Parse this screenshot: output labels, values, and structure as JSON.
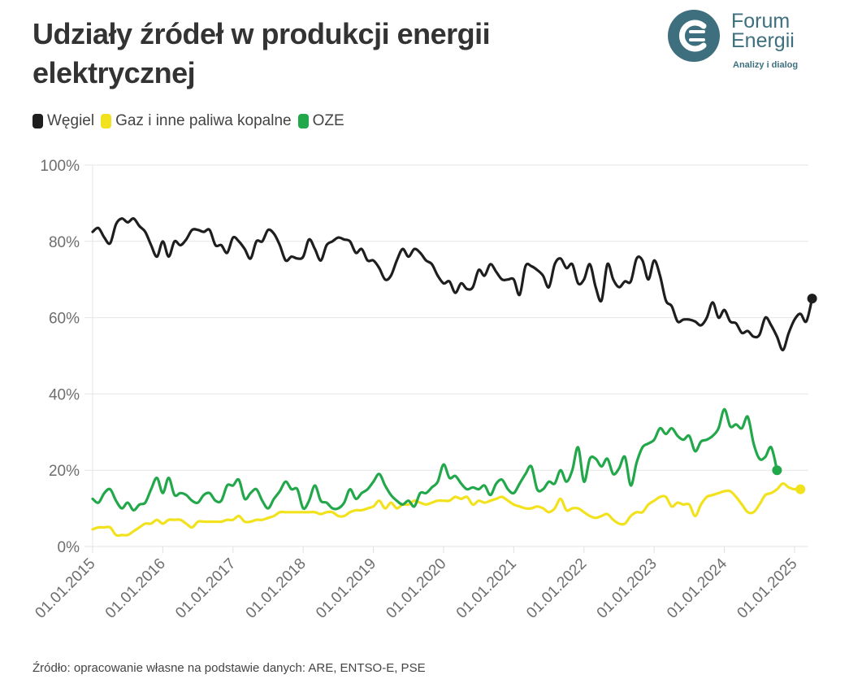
{
  "header": {
    "title": "Udziały źródeł w produkcji energii elektrycznej",
    "logo": {
      "line1": "Forum",
      "line2": "Energii",
      "tagline": "Analizy i dialog",
      "color": "#3d6f7e",
      "accent": "#d63b3b"
    }
  },
  "legend": [
    {
      "label": "Węgiel",
      "color": "#1e1e1e"
    },
    {
      "label": "Gaz i inne paliwa kopalne",
      "color": "#f2e21d"
    },
    {
      "label": "OZE",
      "color": "#22a84a"
    }
  ],
  "source": "Źródło: opracowanie własne na podstawie danych: ARE, ENTSO-E, PSE",
  "chart_data": {
    "type": "line",
    "title": "Udziały źródeł w produkcji energii elektrycznej",
    "xlabel": "",
    "ylabel": "",
    "x_start": "2015-01",
    "x_end": "2025-02",
    "x_step": "month",
    "x_tick_labels": [
      "01.01.2015",
      "01.01.2016",
      "01.01.2017",
      "01.01.2018",
      "01.01.2019",
      "01.01.2020",
      "01.01.2021",
      "01.01.2022",
      "01.01.2023",
      "01.01.2024",
      "01.01.2025"
    ],
    "y_tick_labels": [
      "0%",
      "20%",
      "40%",
      "60%",
      "80%",
      "100%"
    ],
    "ylim": [
      0,
      100
    ],
    "grid": true,
    "legend_position": "top-left",
    "series": [
      {
        "name": "Węgiel",
        "color": "#1e1e1e",
        "end_marker": true,
        "values": [
          82.5,
          83.5,
          81,
          79.5,
          84.5,
          86,
          85,
          86,
          84,
          82.5,
          79,
          76,
          80,
          76,
          80,
          79,
          80.5,
          83,
          83,
          82.5,
          83,
          79,
          79,
          77,
          81,
          80,
          78,
          75.5,
          80,
          80,
          83,
          82,
          79,
          75,
          76,
          75.5,
          76,
          80.5,
          78,
          75,
          79,
          80,
          81,
          80.5,
          80,
          77,
          78,
          75,
          75,
          73,
          70,
          71,
          75,
          78,
          76,
          78,
          77,
          75,
          74,
          71,
          69,
          69.5,
          66.5,
          69,
          67.5,
          68,
          72.5,
          71,
          74,
          72,
          70,
          70,
          70,
          66,
          73.5,
          73.5,
          72.5,
          71,
          68,
          74,
          75.5,
          73,
          74,
          69,
          70,
          74,
          68,
          64.5,
          74,
          70,
          68,
          69.5,
          69.5,
          75.5,
          75,
          70,
          75,
          71,
          64.5,
          63,
          59,
          59.5,
          59.5,
          59,
          58,
          60,
          64,
          60,
          62,
          59,
          58.5,
          56,
          56.5,
          55,
          55.5,
          60,
          58,
          55,
          51.5,
          56,
          59.5,
          61,
          59,
          65
        ]
      },
      {
        "name": "Gaz i inne paliwa kopalne",
        "color": "#f2e21d",
        "end_marker": true,
        "values": [
          4.5,
          5,
          5,
          5,
          3,
          3,
          3,
          4,
          5,
          6,
          6,
          7,
          6,
          7,
          7,
          7,
          6,
          5,
          6.5,
          6.5,
          6.5,
          6.5,
          6.5,
          7,
          7,
          8,
          6.5,
          6.5,
          7,
          7,
          7.5,
          8,
          9,
          9,
          9,
          9,
          9,
          9,
          9,
          8.5,
          9,
          9,
          8,
          8,
          9,
          9.5,
          9.5,
          10,
          10.5,
          12,
          10,
          11.5,
          10,
          11,
          11,
          12,
          11.5,
          11,
          11.5,
          12,
          12,
          12,
          13,
          12.5,
          13,
          11,
          12,
          11.5,
          12,
          12.5,
          13,
          12,
          11,
          10.5,
          10,
          10,
          10.5,
          10,
          9,
          10,
          12.5,
          9.5,
          10,
          10,
          9,
          8,
          7.5,
          8,
          8.5,
          7,
          6,
          6,
          8,
          9,
          9,
          11,
          12,
          13,
          13,
          10.5,
          11.5,
          11,
          11,
          8,
          11,
          13,
          13.5,
          14,
          14.5,
          14.5,
          13,
          11,
          9,
          9,
          11,
          13.5,
          14,
          15,
          16.5,
          15.5,
          15,
          15
        ]
      },
      {
        "name": "OZE",
        "color": "#22a84a",
        "end_marker": true,
        "values": [
          12.5,
          11.5,
          14,
          15,
          12,
          10,
          11.5,
          9.5,
          11,
          11.5,
          15,
          18,
          14,
          18,
          13.5,
          14,
          13.5,
          12,
          11.5,
          13.5,
          14,
          12,
          12,
          16,
          16,
          17.5,
          12.5,
          14,
          15,
          12,
          10,
          12.5,
          14.5,
          17,
          15,
          15,
          10,
          12,
          16,
          12,
          11.5,
          10,
          10,
          11.5,
          15,
          12.5,
          14,
          15,
          17,
          19,
          16,
          13.5,
          12,
          11,
          12,
          10.5,
          14,
          14,
          15.5,
          17,
          21.5,
          18,
          18.5,
          16.5,
          15,
          15.5,
          15,
          16,
          13.5,
          16.5,
          17.5,
          15,
          14,
          16.5,
          19,
          21,
          15,
          15,
          17,
          16.5,
          20,
          17,
          20,
          26,
          17,
          23,
          23,
          21,
          23,
          19,
          20.5,
          23.5,
          16,
          22,
          26,
          27,
          28,
          31,
          29.5,
          31,
          29,
          28,
          29,
          25,
          27.5,
          28,
          29,
          31,
          36,
          31.5,
          32,
          31,
          34,
          27,
          23,
          23.5,
          26,
          20
        ]
      }
    ]
  }
}
